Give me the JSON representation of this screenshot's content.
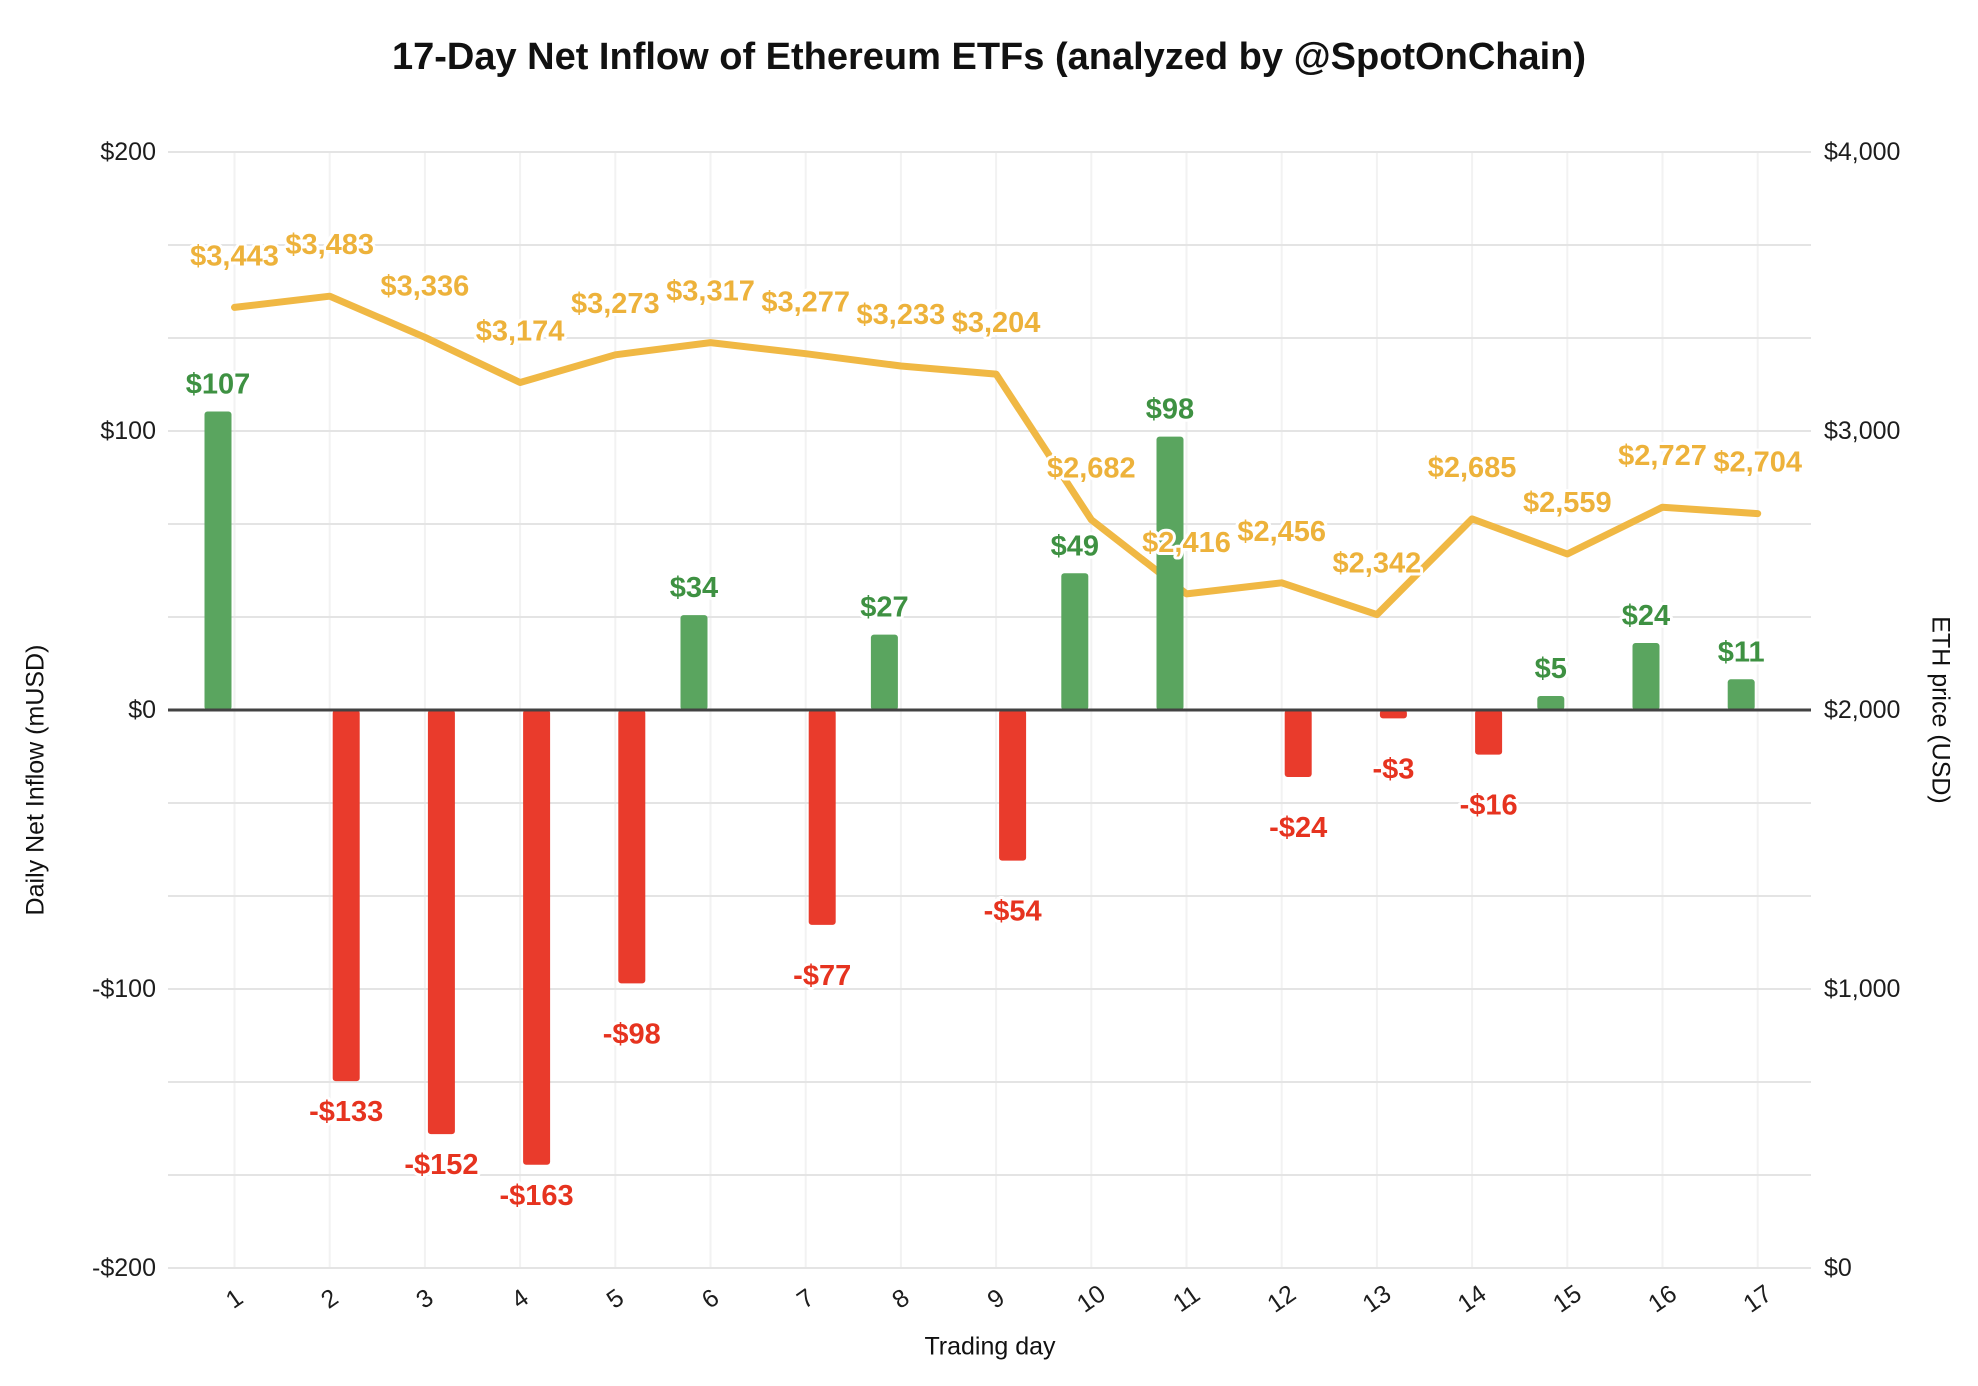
{
  "title": "17-Day Net Inflow of Ethereum ETFs (analyzed by @SpotOnChain)",
  "chart_data": {
    "type": "bar+line combo",
    "title": "17-Day Net Inflow of Ethereum ETFs (analyzed by @SpotOnChain)",
    "categories": [
      1,
      2,
      3,
      4,
      5,
      6,
      7,
      8,
      9,
      10,
      11,
      12,
      13,
      14,
      15,
      16,
      17
    ],
    "series": [
      {
        "name": "Daily Net Inflow (mUSD)",
        "type": "bar",
        "values": [
          107,
          -133,
          -152,
          -163,
          -98,
          34,
          -77,
          27,
          -54,
          49,
          98,
          -24,
          -3,
          -16,
          5,
          24,
          11
        ],
        "value_labels": [
          "$107",
          "-$133",
          "-$152",
          "-$163",
          "-$98",
          "$34",
          "-$77",
          "$27",
          "-$54",
          "$49",
          "$98",
          "-$24",
          "-$3",
          "-$16",
          "$5",
          "$24",
          "$11"
        ]
      },
      {
        "name": "ETH price (USD)",
        "type": "line",
        "values": [
          3443,
          3483,
          3336,
          3174,
          3273,
          3317,
          3277,
          3233,
          3204,
          2682,
          2416,
          2456,
          2342,
          2685,
          2559,
          2727,
          2704
        ],
        "value_labels": [
          "$3,443",
          "$3,483",
          "$3,336",
          "$3,174",
          "$3,273",
          "$3,317",
          "$3,277",
          "$3,233",
          "$3,204",
          "$2,682",
          "$2,416",
          "$2,456",
          "$2,342",
          "$2,685",
          "$2,559",
          "$2,727",
          "$2,704"
        ]
      }
    ],
    "left_axis": {
      "label": "Daily Net Inflow (mUSD)",
      "tick_labels": [
        "$200",
        "$100",
        "$0",
        "-$100",
        "-$200"
      ],
      "range": [
        -200,
        200
      ]
    },
    "right_axis": {
      "label": "ETH price (USD)",
      "tick_labels": [
        "$4,000",
        "$3,000",
        "$2,000",
        "$1,000",
        "$0"
      ],
      "range": [
        0,
        4000
      ]
    },
    "x_axis": {
      "label": "Trading day",
      "tick_labels": [
        "1",
        "2",
        "3",
        "4",
        "5",
        "6",
        "7",
        "8",
        "9",
        "10",
        "11",
        "12",
        "13",
        "14",
        "15",
        "16",
        "17"
      ]
    },
    "legend": "none",
    "grid": "on",
    "colors": {
      "bar_positive": "#5AA55F",
      "bar_negative": "#E93B2C",
      "label_positive": "#3E9142",
      "label_negative": "#E6331F",
      "line": "#F0B844",
      "line_label": "#EDB23B",
      "grid_h": "#E4E4E4",
      "grid_v": "#F2F2F2",
      "zero_line": "#424242",
      "tick_text": "#1d1d1d"
    }
  }
}
